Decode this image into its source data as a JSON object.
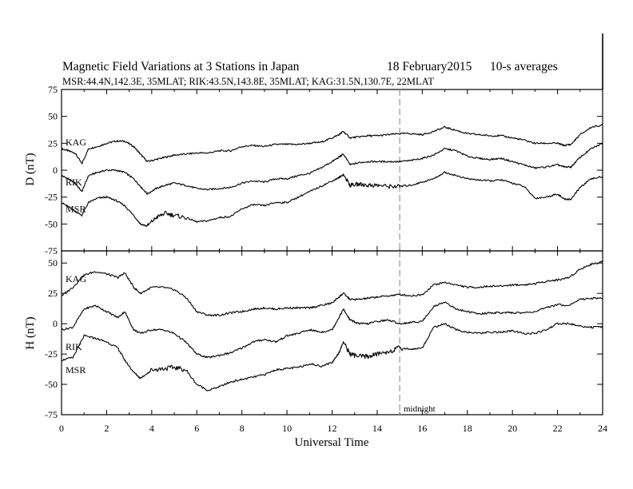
{
  "header": {
    "title": "Magnetic Field Variations at 3 Stations in Japan",
    "date": "18  February2015",
    "averaging": "10-s averages",
    "stations_line": "MSR:44.4N,142.3E, 35MLAT;  RIK:43.5N,143.8E, 35MLAT;  KAG:31.5N,130.7E, 22MLAT"
  },
  "annotation": {
    "midnight_label": "midnight",
    "midnight_ut": 15
  },
  "colors": {
    "trace": "#000000",
    "axes": "#000000",
    "midnight_line": "#a6a6a6"
  },
  "chart_data": [
    {
      "type": "line",
      "panel": "D",
      "ylabel": "D (nT)",
      "ylim": [
        -75,
        75
      ],
      "yticks": [
        -75,
        -50,
        -25,
        0,
        25,
        50,
        75
      ],
      "xlim": [
        0,
        24
      ],
      "series": [
        {
          "name": "KAG",
          "x": [
            0,
            0.3,
            0.6,
            0.9,
            1.2,
            1.6,
            2,
            2.4,
            2.8,
            3.2,
            3.5,
            3.8,
            4.2,
            4.6,
            5,
            5.5,
            6,
            6.5,
            7,
            7.5,
            8,
            8.5,
            9,
            9.5,
            10,
            10.5,
            11,
            11.5,
            12,
            12.3,
            12.5,
            12.8,
            13.2,
            13.6,
            14,
            14.5,
            15,
            15.5,
            16,
            16.5,
            17,
            17.5,
            18,
            18.5,
            19,
            19.5,
            20,
            20.5,
            21,
            21.5,
            22,
            22.3,
            22.6,
            23,
            23.5,
            24
          ],
          "values": [
            20,
            18,
            16,
            6,
            20,
            22,
            25,
            27,
            27,
            22,
            15,
            8,
            10,
            12,
            14,
            15,
            16,
            16,
            18,
            18,
            22,
            23,
            22,
            24,
            24,
            24,
            25,
            26,
            30,
            33,
            36,
            30,
            31,
            32,
            32,
            33,
            34,
            34,
            33,
            36,
            40,
            37,
            34,
            33,
            32,
            32,
            30,
            28,
            25,
            25,
            25,
            23,
            24,
            33,
            40,
            42
          ]
        },
        {
          "name": "RIK",
          "x": [
            0,
            0.3,
            0.6,
            0.9,
            1.2,
            1.6,
            2,
            2.4,
            2.8,
            3.2,
            3.5,
            3.8,
            4.2,
            4.6,
            5,
            5.5,
            6,
            6.5,
            7,
            7.5,
            8,
            8.5,
            9,
            9.5,
            10,
            10.5,
            11,
            11.5,
            12,
            12.3,
            12.5,
            12.8,
            13.2,
            13.6,
            14,
            14.5,
            15,
            15.5,
            16,
            16.5,
            17,
            17.5,
            18,
            18.5,
            19,
            19.5,
            20,
            20.5,
            21,
            21.5,
            22,
            22.3,
            22.6,
            23,
            23.5,
            24
          ],
          "values": [
            -5,
            -8,
            -12,
            -20,
            -5,
            -2,
            0,
            0,
            -2,
            -8,
            -15,
            -22,
            -17,
            -14,
            -12,
            -14,
            -17,
            -18,
            -17,
            -16,
            -12,
            -10,
            -11,
            -8,
            -8,
            -5,
            -3,
            2,
            8,
            12,
            15,
            5,
            7,
            8,
            8,
            8,
            8,
            9,
            11,
            14,
            20,
            18,
            13,
            11,
            10,
            11,
            8,
            5,
            2,
            3,
            5,
            3,
            3,
            12,
            20,
            25
          ]
        },
        {
          "name": "MSR",
          "x": [
            0,
            0.3,
            0.6,
            0.9,
            1.2,
            1.6,
            2,
            2.4,
            2.8,
            3.2,
            3.5,
            3.8,
            4.2,
            4.6,
            5,
            5.5,
            6,
            6.5,
            7,
            7.5,
            8,
            8.5,
            9,
            9.5,
            10,
            10.5,
            11,
            11.5,
            12,
            12.3,
            12.5,
            12.8,
            13.2,
            13.6,
            14,
            14.5,
            15,
            15.5,
            16,
            16.5,
            17,
            17.5,
            18,
            18.5,
            19,
            19.5,
            20,
            20.5,
            21,
            21.5,
            22,
            22.3,
            22.6,
            23,
            23.5,
            24
          ],
          "values": [
            -30,
            -34,
            -38,
            -42,
            -30,
            -26,
            -25,
            -28,
            -33,
            -42,
            -50,
            -52,
            -44,
            -40,
            -42,
            -44,
            -48,
            -47,
            -44,
            -43,
            -36,
            -32,
            -33,
            -30,
            -30,
            -25,
            -20,
            -15,
            -10,
            -7,
            -4,
            -14,
            -13,
            -14,
            -14,
            -15,
            -15,
            -14,
            -11,
            -8,
            -2,
            -5,
            -8,
            -9,
            -10,
            -9,
            -12,
            -15,
            -26,
            -25,
            -22,
            -27,
            -27,
            -16,
            -8,
            -6
          ]
        }
      ]
    },
    {
      "type": "line",
      "panel": "H",
      "ylabel": "H (nT)",
      "ylim": [
        -75,
        60
      ],
      "yticks": [
        -75,
        -50,
        -25,
        0,
        25,
        50
      ],
      "xlim": [
        0,
        24
      ],
      "xticks": [
        0,
        2,
        4,
        6,
        8,
        10,
        12,
        14,
        16,
        18,
        20,
        22,
        24
      ],
      "xlabel": "Universal Time",
      "series": [
        {
          "name": "KAG",
          "x": [
            0,
            0.5,
            1,
            1.5,
            2,
            2.5,
            2.8,
            3.2,
            3.5,
            4,
            4.5,
            5,
            5.5,
            6,
            6.5,
            7,
            7.5,
            8,
            8.5,
            9,
            9.5,
            10,
            10.5,
            11,
            11.5,
            12,
            12.3,
            12.5,
            12.8,
            13.2,
            13.6,
            14,
            14.5,
            15,
            15.5,
            16,
            16.5,
            17,
            17.5,
            18,
            18.5,
            19,
            19.5,
            20,
            20.5,
            21,
            21.5,
            22,
            22.5,
            23,
            23.5,
            24
          ],
          "values": [
            23,
            30,
            40,
            43,
            41,
            38,
            42,
            30,
            25,
            30,
            30,
            28,
            22,
            10,
            7,
            7,
            9,
            10,
            12,
            13,
            12,
            13,
            13,
            13,
            15,
            17,
            22,
            25,
            20,
            20,
            21,
            22,
            23,
            24,
            23,
            24,
            32,
            34,
            32,
            30,
            30,
            31,
            31,
            32,
            32,
            33,
            35,
            36,
            38,
            45,
            49,
            51
          ]
        },
        {
          "name": "RIK",
          "x": [
            0,
            0.5,
            1,
            1.5,
            2,
            2.5,
            2.8,
            3.2,
            3.5,
            4,
            4.5,
            5,
            5.5,
            6,
            6.5,
            7,
            7.5,
            8,
            8.5,
            9,
            9.5,
            10,
            10.5,
            11,
            11.5,
            12,
            12.3,
            12.5,
            12.8,
            13.2,
            13.6,
            14,
            14.5,
            15,
            15.5,
            16,
            16.5,
            17,
            17.5,
            18,
            18.5,
            19,
            19.5,
            20,
            20.5,
            21,
            21.5,
            22,
            22.5,
            23,
            23.5,
            24
          ],
          "values": [
            -5,
            -3,
            12,
            15,
            10,
            5,
            10,
            -5,
            -8,
            -5,
            -5,
            -8,
            -15,
            -25,
            -28,
            -26,
            -24,
            -20,
            -15,
            -13,
            -15,
            -10,
            -8,
            -5,
            -7,
            -5,
            5,
            12,
            3,
            0,
            0,
            2,
            3,
            0,
            1,
            2,
            14,
            18,
            12,
            10,
            8,
            9,
            9,
            9,
            9,
            10,
            13,
            16,
            15,
            20,
            21,
            21
          ]
        },
        {
          "name": "MSR",
          "x": [
            0,
            0.5,
            1,
            1.5,
            2,
            2.5,
            2.8,
            3.2,
            3.5,
            4,
            4.5,
            5,
            5.5,
            6,
            6.5,
            7,
            7.5,
            8,
            8.5,
            9,
            9.5,
            10,
            10.5,
            11,
            11.5,
            12,
            12.3,
            12.5,
            12.8,
            13.2,
            13.6,
            14,
            14.5,
            15,
            15.5,
            16,
            16.5,
            17,
            17.5,
            18,
            18.5,
            19,
            19.5,
            20,
            20.5,
            21,
            21.5,
            22,
            22.5,
            23,
            23.5,
            24
          ],
          "values": [
            -30,
            -28,
            -10,
            -12,
            -15,
            -20,
            -30,
            -40,
            -45,
            -38,
            -37,
            -36,
            -38,
            -50,
            -55,
            -52,
            -48,
            -46,
            -44,
            -42,
            -38,
            -37,
            -36,
            -33,
            -35,
            -32,
            -24,
            -15,
            -25,
            -27,
            -27,
            -25,
            -23,
            -20,
            -21,
            -20,
            -3,
            0,
            -5,
            -7,
            -8,
            -7,
            -7,
            -6,
            -8,
            -8,
            -5,
            0,
            0,
            -2,
            -3,
            -3
          ]
        }
      ]
    }
  ]
}
